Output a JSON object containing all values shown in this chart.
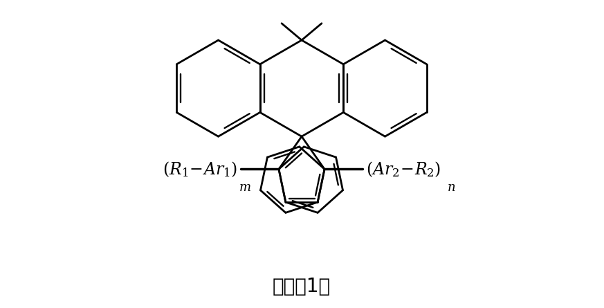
{
  "title": "通式（1）",
  "title_fontsize": 20,
  "bg_color": "#ffffff",
  "line_color": "#000000",
  "lw": 2.0,
  "fig_width": 8.73,
  "fig_height": 4.45,
  "dpi": 100
}
